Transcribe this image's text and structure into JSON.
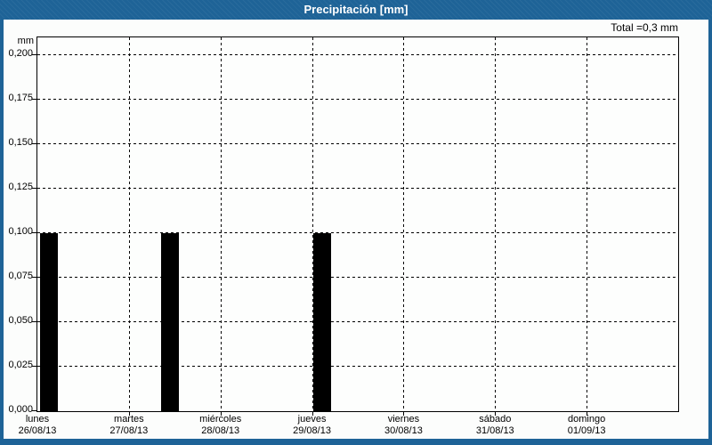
{
  "title_bar": {
    "title": "Precipitación [mm]"
  },
  "colors": {
    "titlebar_bg": "#1e6397",
    "frame": "#1e6397",
    "title_text": "#ffffff",
    "bar": "#000000",
    "grid": "#000000",
    "text": "#000000",
    "background": "#fcfdfc"
  },
  "chart_data": {
    "type": "bar",
    "title": "Precipitación [mm]",
    "y_axis_unit": "mm",
    "total_annotation": "Total =0,3 mm",
    "total_mm": 0.3,
    "ylim": [
      0,
      0.21
    ],
    "grid": "dashed, both axes",
    "y_ticks": [
      {
        "label": "0,200",
        "value": 0.2
      },
      {
        "label": "0,175",
        "value": 0.175
      },
      {
        "label": "0,150",
        "value": 0.15
      },
      {
        "label": "0,125",
        "value": 0.125
      },
      {
        "label": "0,100",
        "value": 0.1
      },
      {
        "label": "0,075",
        "value": 0.075
      },
      {
        "label": "0,050",
        "value": 0.05
      },
      {
        "label": "0,025",
        "value": 0.025
      },
      {
        "label": "0,000",
        "value": 0.0
      }
    ],
    "days": [
      {
        "name": "lunes",
        "date": "26/08/13"
      },
      {
        "name": "martes",
        "date": "27/08/13"
      },
      {
        "name": "miércoles",
        "date": "28/08/13"
      },
      {
        "name": "jueves",
        "date": "29/08/13"
      },
      {
        "name": "viernes",
        "date": "30/08/13"
      },
      {
        "name": "sábado",
        "date": "31/08/13"
      },
      {
        "name": "domingo",
        "date": "01/09/13"
      }
    ],
    "daily_totals_mm": [
      0.1,
      0.1,
      0,
      0.1,
      0,
      0,
      0
    ],
    "bars": [
      {
        "day": "lunes",
        "date": "26/08/13",
        "value_mm": 0.1,
        "day_index": 0,
        "start_frac": 0.025,
        "width_frac": 0.195
      },
      {
        "day": "martes",
        "date": "27/08/13",
        "value_mm": 0.1,
        "day_index": 1,
        "start_frac": 0.351,
        "width_frac": 0.195
      },
      {
        "day": "jueves",
        "date": "29/08/13",
        "value_mm": 0.1,
        "day_index": 3,
        "start_frac": 0.014,
        "width_frac": 0.195
      }
    ]
  }
}
